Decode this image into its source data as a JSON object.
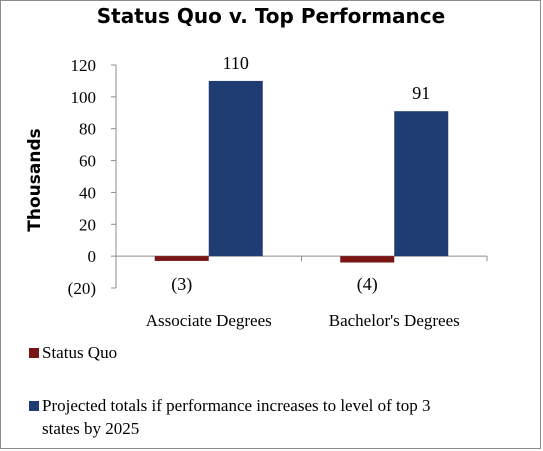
{
  "chart_data": {
    "type": "bar",
    "title": "Status Quo v. Top Performance",
    "ylabel": "Thousands",
    "xlabel": "",
    "categories": [
      "Associate Degrees",
      "Bachelor's Degrees"
    ],
    "series": [
      {
        "name": "Status Quo",
        "values": [
          -3,
          -4
        ],
        "labels": [
          "(3)",
          "(4)"
        ],
        "color": "#7b1414"
      },
      {
        "name": "Projected totals if performance increases to level of top 3 states by 2025",
        "values": [
          110,
          91
        ],
        "labels": [
          "110",
          "91"
        ],
        "color": "#1f3d73"
      }
    ],
    "ylim": [
      -20,
      120
    ],
    "yticks": [
      -20,
      0,
      20,
      40,
      60,
      80,
      100,
      120
    ],
    "ytick_labels": [
      "(20)",
      "0",
      "20",
      "40",
      "60",
      "80",
      "100",
      "120"
    ],
    "grid": false,
    "legend_position": "bottom",
    "legend_lines": [
      [
        "Status Quo"
      ],
      [
        "Projected totals if performance increases to level of top 3",
        "states by 2025"
      ]
    ]
  }
}
